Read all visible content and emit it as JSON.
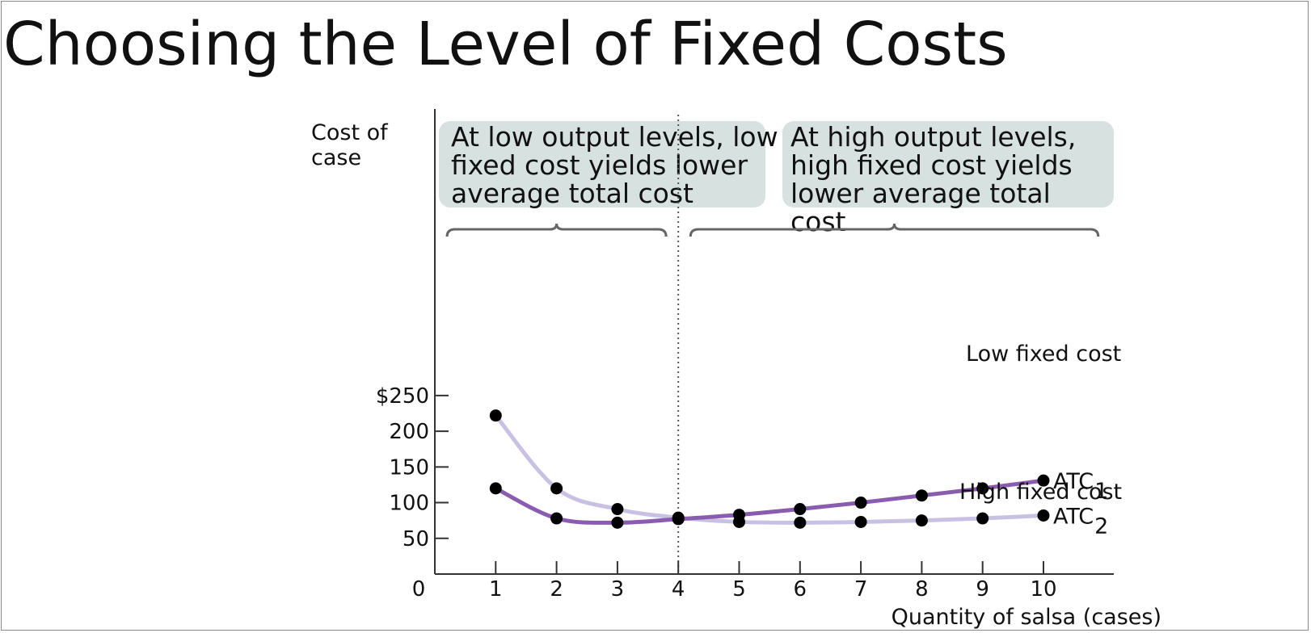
{
  "slide": {
    "title": "Choosing the Level of Fixed Costs"
  },
  "chart_data": {
    "type": "line",
    "ylabel_lines": [
      "Cost of",
      "case"
    ],
    "xlabel": "Quantity of salsa (cases)",
    "origin_label": "0",
    "xlim": [
      0,
      11
    ],
    "ylim": [
      0,
      250
    ],
    "x_ticks": [
      1,
      2,
      3,
      4,
      5,
      6,
      7,
      8,
      9,
      10
    ],
    "y_ticks": [
      {
        "value": 50,
        "label": "50"
      },
      {
        "value": 100,
        "label": "100"
      },
      {
        "value": 150,
        "label": "150"
      },
      {
        "value": 200,
        "label": "200"
      },
      {
        "value": 250,
        "label": "$250"
      }
    ],
    "divider_x": 4,
    "series": [
      {
        "id": "atc1",
        "name": "ATC",
        "subscript": "1",
        "descriptor": "Low fixed cost",
        "color": "#8a5cb0",
        "points": [
          {
            "x": 1,
            "y": 120
          },
          {
            "x": 2,
            "y": 78
          },
          {
            "x": 3,
            "y": 72
          },
          {
            "x": 4,
            "y": 77
          },
          {
            "x": 5,
            "y": 83
          },
          {
            "x": 6,
            "y": 91
          },
          {
            "x": 7,
            "y": 100
          },
          {
            "x": 8,
            "y": 110
          },
          {
            "x": 9,
            "y": 120
          },
          {
            "x": 10,
            "y": 131
          }
        ]
      },
      {
        "id": "atc2",
        "name": "ATC",
        "subscript": "2",
        "descriptor": "High fixed cost",
        "color": "#c9c1e3",
        "points": [
          {
            "x": 1,
            "y": 222
          },
          {
            "x": 2,
            "y": 120
          },
          {
            "x": 3,
            "y": 91
          },
          {
            "x": 4,
            "y": 79
          },
          {
            "x": 5,
            "y": 73
          },
          {
            "x": 6,
            "y": 72
          },
          {
            "x": 7,
            "y": 73
          },
          {
            "x": 8,
            "y": 75
          },
          {
            "x": 9,
            "y": 78
          },
          {
            "x": 10,
            "y": 82
          }
        ]
      }
    ],
    "annotations": [
      {
        "id": "low-output",
        "lines": [
          "At low output levels, low",
          "fixed cost yields lower",
          "average total cost"
        ],
        "range": [
          0.2,
          3.8
        ],
        "fill": "#d7e2e0"
      },
      {
        "id": "high-output",
        "lines": [
          "At high output levels,",
          "high fixed cost yields",
          "lower average total",
          "cost"
        ],
        "range": [
          4.2,
          10.9
        ],
        "fill": "#d7e2e0"
      }
    ]
  }
}
